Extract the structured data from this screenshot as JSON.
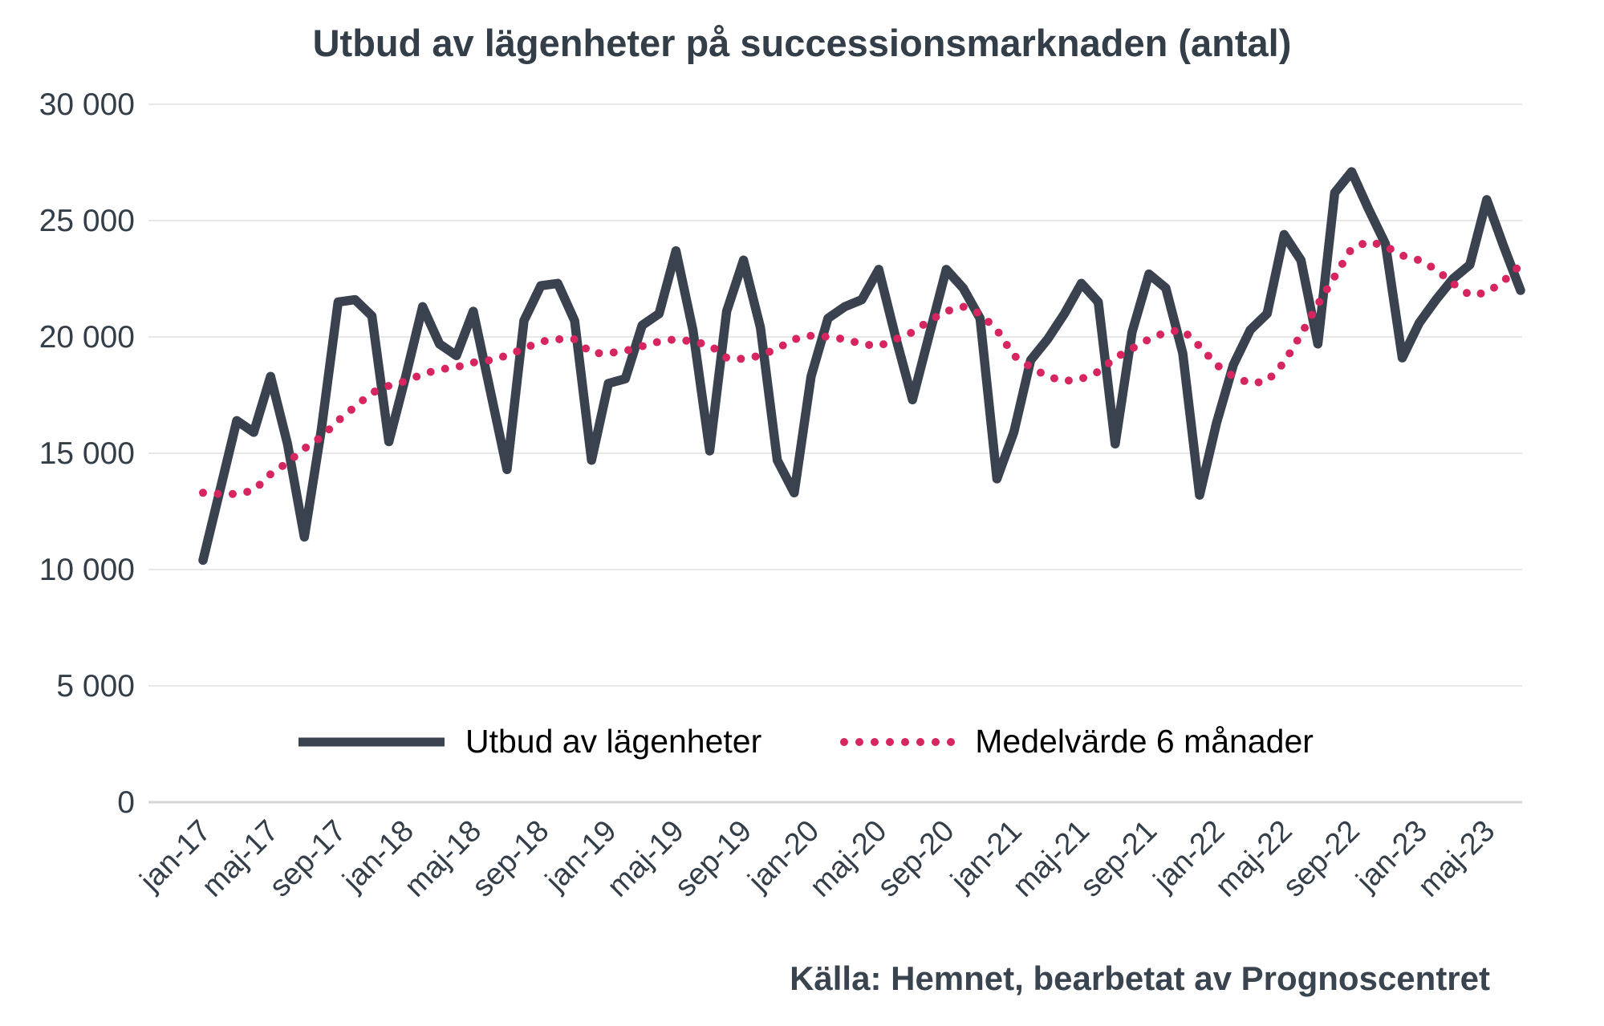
{
  "chart_data": {
    "type": "line",
    "title": "Utbud av lägenheter på successionsmarknaden (antal)",
    "source": "Källa: Hemnet, bearbetat av Prognoscentret",
    "xlabel": "",
    "ylabel": "",
    "ylim": [
      0,
      30000
    ],
    "grid": "horizontal",
    "legend_position": "bottom",
    "yticks": [
      {
        "value": 0,
        "label": "0"
      },
      {
        "value": 5000,
        "label": "5 000"
      },
      {
        "value": 10000,
        "label": "10 000"
      },
      {
        "value": 15000,
        "label": "15 000"
      },
      {
        "value": 20000,
        "label": "20 000"
      },
      {
        "value": 25000,
        "label": "25 000"
      },
      {
        "value": 30000,
        "label": "30 000"
      }
    ],
    "x_tick_step": 4,
    "categories": [
      "jan-17",
      "feb-17",
      "mar-17",
      "apr-17",
      "maj-17",
      "jun-17",
      "jul-17",
      "aug-17",
      "sep-17",
      "okt-17",
      "nov-17",
      "dec-17",
      "jan-18",
      "feb-18",
      "mar-18",
      "apr-18",
      "maj-18",
      "jun-18",
      "jul-18",
      "aug-18",
      "sep-18",
      "okt-18",
      "nov-18",
      "dec-18",
      "jan-19",
      "feb-19",
      "mar-19",
      "apr-19",
      "maj-19",
      "jun-19",
      "jul-19",
      "aug-19",
      "sep-19",
      "okt-19",
      "nov-19",
      "dec-19",
      "jan-20",
      "feb-20",
      "mar-20",
      "apr-20",
      "maj-20",
      "jun-20",
      "jul-20",
      "aug-20",
      "sep-20",
      "okt-20",
      "nov-20",
      "dec-20",
      "jan-21",
      "feb-21",
      "mar-21",
      "apr-21",
      "maj-21",
      "jun-21",
      "jul-21",
      "aug-21",
      "sep-21",
      "okt-21",
      "nov-21",
      "dec-21",
      "jan-22",
      "feb-22",
      "mar-22",
      "apr-22",
      "maj-22",
      "jun-22",
      "jul-22",
      "aug-22",
      "sep-22",
      "okt-22",
      "nov-22",
      "dec-22",
      "jan-23",
      "feb-23",
      "mar-23",
      "apr-23",
      "maj-23",
      "jun-23",
      "jul-23"
    ],
    "series": [
      {
        "name": "Utbud av lägenheter",
        "style": "solid",
        "color": "#39424e",
        "values": [
          10400,
          13400,
          16400,
          15900,
          18300,
          15400,
          11400,
          16000,
          21500,
          21600,
          20900,
          15500,
          18300,
          21300,
          19700,
          19200,
          21100,
          17700,
          14300,
          20700,
          22200,
          22300,
          20700,
          14700,
          18000,
          18200,
          20500,
          21000,
          23700,
          20300,
          15100,
          21100,
          23300,
          20400,
          14700,
          13300,
          18300,
          20800,
          21300,
          21600,
          22900,
          20000,
          17300,
          20100,
          22900,
          22100,
          20800,
          13900,
          15900,
          19000,
          19900,
          21000,
          22300,
          21500,
          15400,
          20200,
          22700,
          22100,
          19300,
          13200,
          16300,
          18800,
          20300,
          21000,
          24400,
          23300,
          19700,
          26200,
          27100,
          25500,
          24000,
          19100,
          20600,
          21600,
          22500,
          23100,
          25900,
          23900,
          22000
        ]
      },
      {
        "name": "Medelvärde 6 månader",
        "style": "dotted",
        "color": "#d6255f",
        "values": [
          13300,
          13250,
          13250,
          13400,
          14100,
          14600,
          15200,
          15700,
          16400,
          17000,
          17600,
          17900,
          18100,
          18400,
          18600,
          18700,
          18900,
          19000,
          19200,
          19500,
          19800,
          19900,
          19900,
          19300,
          19300,
          19400,
          19600,
          19800,
          19900,
          19800,
          19650,
          19100,
          19050,
          19200,
          19500,
          19900,
          20050,
          20000,
          19900,
          19700,
          19600,
          19900,
          20200,
          20700,
          21100,
          21300,
          21000,
          20300,
          19200,
          18700,
          18300,
          18100,
          18200,
          18500,
          19100,
          19500,
          19900,
          20200,
          20300,
          19600,
          18800,
          18300,
          18000,
          18100,
          18900,
          20100,
          21400,
          22600,
          23800,
          24100,
          23900,
          23500,
          23300,
          22900,
          22300,
          21800,
          21900,
          22400,
          23100
        ]
      }
    ],
    "colors": {
      "grid": "#e8e8e8",
      "axis": "#d6d6d6",
      "tick_text": "#333e49",
      "title_text": "#333e49",
      "legend_text": "#000000",
      "source_text": "#39444f"
    }
  }
}
